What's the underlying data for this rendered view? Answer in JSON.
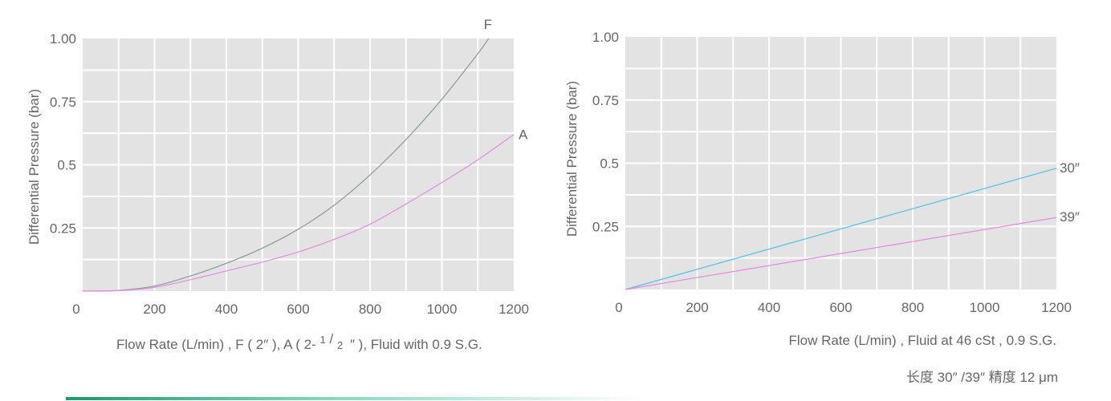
{
  "chart_data": [
    {
      "type": "line",
      "xlabel": "Flow Rate (L/min) ,  F ( 2″ ), A ( 2-",
      "xlabel_frac_num": "1",
      "xlabel_frac_den": "2",
      "xlabel_suffix": "″ ), Fluid with 0.9 S.G.",
      "ylabel": "Differential Pressure (bar)",
      "xlim": [
        0,
        1200
      ],
      "ylim": [
        0,
        1.0
      ],
      "xticks": [
        0,
        200,
        400,
        600,
        800,
        1000,
        1200
      ],
      "xtick_labels": [
        "0",
        "200",
        "400",
        "600",
        "800",
        "1000",
        "1200"
      ],
      "yticks": [
        0.25,
        0.5,
        0.75,
        1.0
      ],
      "ytick_labels": [
        "0.25",
        "0.5",
        "0.75",
        "1.00"
      ],
      "grid": true,
      "series": [
        {
          "name": "F",
          "color": "#8a9a94",
          "x": [
            0,
            100,
            200,
            300,
            400,
            500,
            600,
            700,
            800,
            900,
            1000,
            1100,
            1130
          ],
          "y": [
            0,
            0.003,
            0.02,
            0.06,
            0.11,
            0.17,
            0.245,
            0.34,
            0.46,
            0.6,
            0.76,
            0.94,
            1.0
          ]
        },
        {
          "name": "A",
          "color": "#e58ae0",
          "x": [
            0,
            100,
            200,
            300,
            400,
            500,
            600,
            700,
            800,
            900,
            1000,
            1100,
            1200
          ],
          "y": [
            0,
            0.002,
            0.015,
            0.045,
            0.08,
            0.115,
            0.155,
            0.205,
            0.265,
            0.345,
            0.43,
            0.52,
            0.62
          ]
        }
      ]
    },
    {
      "type": "line",
      "xlabel": "Flow Rate (L/min) , Fluid at 46 cSt , 0.9 S.G.",
      "ylabel": "Differential Pressure (bar)",
      "xlim": [
        0,
        1200
      ],
      "ylim": [
        0,
        1.0
      ],
      "xticks": [
        0,
        200,
        400,
        600,
        800,
        1000,
        1200
      ],
      "xtick_labels": [
        "0",
        "200",
        "400",
        "600",
        "800",
        "1000",
        "1200"
      ],
      "yticks": [
        0.25,
        0.5,
        0.75,
        1.0
      ],
      "ytick_labels": [
        "0.25",
        "0.5",
        "0.75",
        "1.00"
      ],
      "grid": true,
      "series": [
        {
          "name": "30″",
          "color": "#4cc3e8",
          "x": [
            0,
            1200
          ],
          "y": [
            0,
            0.48
          ]
        },
        {
          "name": "39″",
          "color": "#e58ae0",
          "x": [
            0,
            1200
          ],
          "y": [
            0,
            0.285
          ]
        }
      ]
    }
  ],
  "footnote": "长度 30″ /39″ 精度 12 μm",
  "accent_bar": {
    "color_start": "#1a9a6a",
    "color_end": "#ffffff"
  }
}
